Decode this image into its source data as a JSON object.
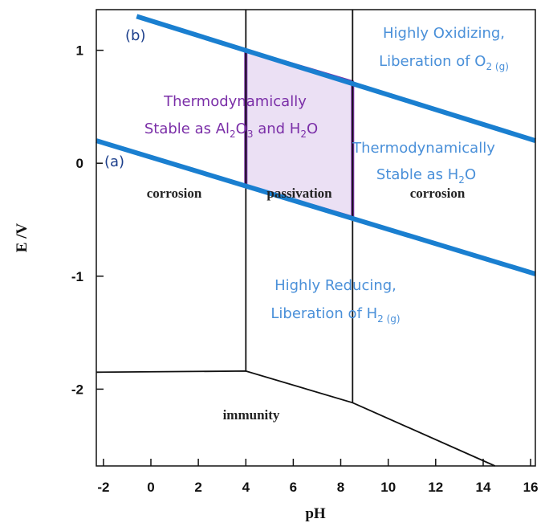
{
  "colors": {
    "water_line": "#1a7fd0",
    "annotation_blue": "#4a90d9",
    "label_navy": "#1c3f8c",
    "passivation_stroke": "#7b2fa8",
    "passivation_fill": "#e4d6f0",
    "annotation_purple": "#7b2fa8",
    "boundary": "#111111"
  },
  "chart_data": {
    "type": "line",
    "xlabel": "pH",
    "ylabel": "E /V",
    "xlim": [
      -2.3,
      16.2
    ],
    "ylim": [
      -2.68,
      1.36
    ],
    "xticks": [
      "-2",
      "0",
      "2",
      "4",
      "6",
      "8",
      "10",
      "12",
      "14",
      "16"
    ],
    "yticks": [
      "1",
      "0",
      "-1",
      "-2"
    ],
    "grid": false,
    "series": [
      {
        "name": "(b)",
        "x": [
          -0.6,
          16.2
        ],
        "y": [
          1.3,
          0.2
        ],
        "style": "water-line"
      },
      {
        "name": "(a)",
        "x": [
          -2.3,
          16.2
        ],
        "y": [
          0.2,
          -0.98
        ],
        "style": "water-line"
      }
    ],
    "boundaries": [
      {
        "x": [
          -2.3,
          4,
          8.5,
          14.5
        ],
        "y": [
          -1.85,
          -1.84,
          -2.12,
          -2.68
        ]
      },
      {
        "x": [
          4,
          4
        ],
        "y": [
          -1.84,
          1.36
        ]
      },
      {
        "x": [
          8.5,
          8.5
        ],
        "y": [
          -2.12,
          1.36
        ]
      }
    ],
    "passivation_region": {
      "x": [
        4,
        8.5,
        8.5,
        4
      ],
      "y": [
        1.0,
        0.72,
        -0.48,
        -0.2
      ]
    },
    "region_labels": {
      "corrosion_left": "corrosion",
      "passivation": "passivation",
      "corrosion_right": "corrosion",
      "immunity": "immunity"
    },
    "line_labels": {
      "b": "(b)",
      "a": "(a)"
    },
    "annotations": {
      "oxidizing_1": "Highly Oxidizing,",
      "oxidizing_2_pre": "Liberation of O",
      "oxidizing_2_sub": "2 (g)",
      "stable_al_1": "Thermodynamically",
      "stable_al_2_pre": "Stable as Al",
      "stable_al_2_sub1": "2",
      "stable_al_2_mid": "O",
      "stable_al_2_sub2": "3",
      "stable_al_2_post": " and H",
      "stable_al_2_sub3": "2",
      "stable_al_2_end": "O",
      "stable_water_1": "Thermodynamically",
      "stable_water_2_pre": "Stable as H",
      "stable_water_2_sub": "2",
      "stable_water_2_end": "O",
      "reducing_1": "Highly Reducing,",
      "reducing_2_pre": "Liberation of H",
      "reducing_2_sub": "2 (g)"
    }
  }
}
